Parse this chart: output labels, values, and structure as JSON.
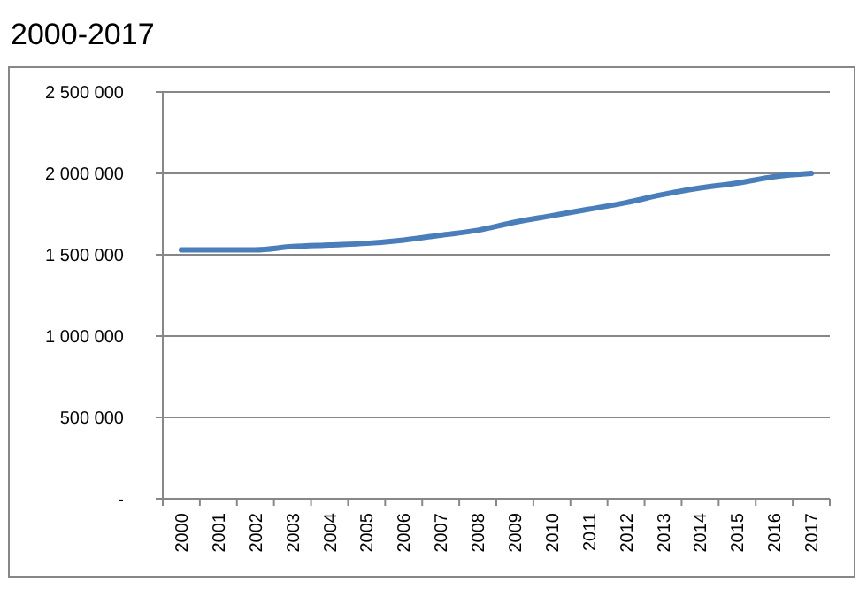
{
  "chart_data": {
    "type": "line",
    "title": "2000-2017",
    "categories": [
      "2000",
      "2001",
      "2002",
      "2003",
      "2004",
      "2005",
      "2006",
      "2007",
      "2008",
      "2009",
      "2010",
      "2011",
      "2012",
      "2013",
      "2014",
      "2015",
      "2016",
      "2017"
    ],
    "series": [
      {
        "color": "#4a7ebb",
        "values": [
          1530000,
          1530000,
          1530000,
          1550000,
          1560000,
          1570000,
          1590000,
          1620000,
          1650000,
          1700000,
          1740000,
          1780000,
          1820000,
          1870000,
          1910000,
          1940000,
          1980000,
          2000000
        ]
      }
    ],
    "ylim": [
      0,
      2500000
    ],
    "yticks": [
      {
        "value": 0,
        "label": "-"
      },
      {
        "value": 500000,
        "label": "500 000"
      },
      {
        "value": 1000000,
        "label": "1 000 000"
      },
      {
        "value": 1500000,
        "label": "1 500 000"
      },
      {
        "value": 2000000,
        "label": "2 000 000"
      },
      {
        "value": 2500000,
        "label": "2 500 000"
      }
    ],
    "grid": "y",
    "marker": "none",
    "line_style": "solid"
  }
}
